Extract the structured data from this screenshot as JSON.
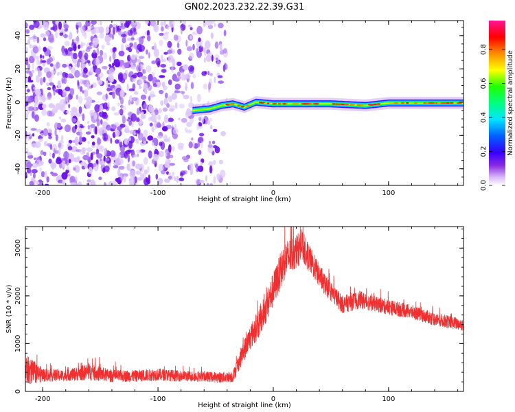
{
  "figure": {
    "title": "GN02.2023.232.22.39.G31"
  },
  "chart_data": [
    {
      "type": "heatmap",
      "xlabel": "Height of straight line (km)",
      "ylabel": "Frequency (Hz)",
      "xlim": [
        -215,
        165
      ],
      "ylim": [
        -50,
        49
      ],
      "x_ticks": [
        -200,
        -100,
        0,
        100
      ],
      "y_ticks": [
        -40,
        -20,
        0,
        20,
        40
      ],
      "colorbar": {
        "label": "Normalized spectral amplitude",
        "range": [
          0,
          0.97
        ],
        "ticks": [
          0.0,
          0.2,
          0.4,
          0.6,
          0.8
        ],
        "colormap": [
          "#ffffff",
          "#8a2be2",
          "#4b00ff",
          "#0000ff",
          "#00bfff",
          "#00ffff",
          "#00ff00",
          "#ffff00",
          "#ff8c00",
          "#ff0000",
          "#ff1493"
        ]
      },
      "noise_region": {
        "x_range": [
          -215,
          -40
        ],
        "freq_range": [
          -50,
          49
        ],
        "amplitude_range": [
          0.0,
          0.15
        ]
      },
      "signal_band": {
        "x_range": [
          -70,
          165
        ],
        "centerline": [
          {
            "x": -70,
            "freq": -5
          },
          {
            "x": -55,
            "freq": -4
          },
          {
            "x": -45,
            "freq": -2
          },
          {
            "x": -35,
            "freq": -1
          },
          {
            "x": -25,
            "freq": -3
          },
          {
            "x": -15,
            "freq": 0
          },
          {
            "x": 0,
            "freq": -1
          },
          {
            "x": 50,
            "freq": -1
          },
          {
            "x": 80,
            "freq": -2
          },
          {
            "x": 100,
            "freq": -0.5
          },
          {
            "x": 165,
            "freq": -0.5
          }
        ],
        "bandwidth_hz": 3,
        "peak_amplitude": 0.9
      }
    },
    {
      "type": "line",
      "xlabel": "Height of straight line (km)",
      "ylabel": "SNR (10 * v/v)",
      "xlim": [
        -215,
        165
      ],
      "ylim": [
        0,
        3450
      ],
      "x_ticks": [
        -200,
        -100,
        0,
        100
      ],
      "y_ticks": [
        0,
        1000,
        2000,
        3000
      ],
      "series": [
        {
          "color": "#f03030",
          "x": [
            -215,
            -200,
            -180,
            -160,
            -140,
            -120,
            -100,
            -80,
            -60,
            -45,
            -35,
            -28,
            -20,
            -10,
            0,
            10,
            20,
            25,
            35,
            45,
            60,
            75,
            90,
            100,
            120,
            140,
            165
          ],
          "y": [
            420,
            330,
            320,
            390,
            310,
            310,
            340,
            310,
            300,
            280,
            300,
            700,
            1100,
            1500,
            2100,
            2700,
            2900,
            3000,
            2600,
            2200,
            1800,
            1900,
            1800,
            1750,
            1650,
            1500,
            1380
          ],
          "noise_amplitude": [
            400,
            180,
            140,
            220,
            160,
            150,
            160,
            140,
            130,
            140,
            150,
            250,
            330,
            400,
            450,
            500,
            450,
            420,
            330,
            270,
            230,
            230,
            200,
            200,
            180,
            170,
            160
          ]
        }
      ]
    }
  ]
}
